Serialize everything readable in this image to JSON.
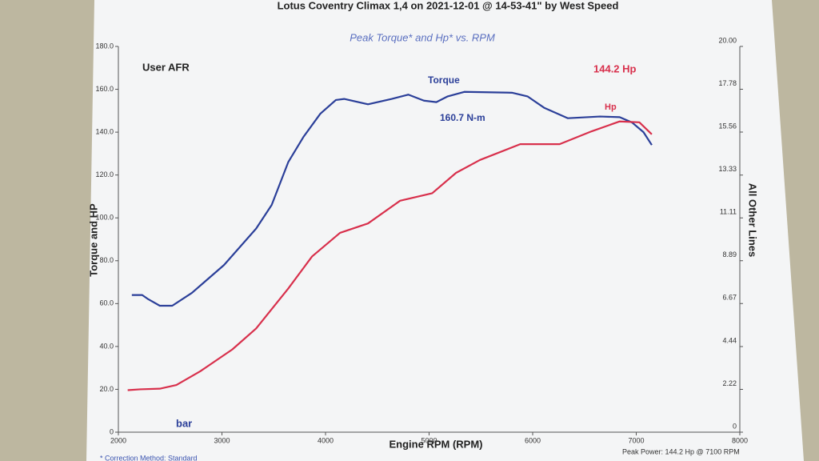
{
  "chart_data": {
    "type": "line",
    "header": "Lotus Coventry Climax 1,4 on 2021-12-01 @ 14-53-41\" by West Speed",
    "title": "Peak Torque* and Hp* vs. RPM",
    "x_label": "Engine RPM (RPM)",
    "y_label": "Torque and HP",
    "y2_label": "All Other Lines",
    "annotations": {
      "afr": "User AFR",
      "bar": "bar",
      "torque": "Torque",
      "torque_peak": "160.7 N-m",
      "hp_peak": "144.2 Hp",
      "hp": "Hp"
    },
    "footer_left": "* Correction Method: Standard",
    "footer_right": "Peak Power: 144.2 Hp @ 7100 RPM",
    "xlim": [
      2000,
      8000
    ],
    "xticks": [
      2000,
      3000,
      4000,
      5000,
      6000,
      7000,
      8000
    ],
    "ylim": [
      0,
      180
    ],
    "yticks": [
      0,
      {
        "value": 20,
        "label": "20.0"
      },
      {
        "value": 40,
        "label": "40.0"
      },
      {
        "value": 60,
        "label": "60.0"
      },
      {
        "value": 80,
        "label": "80.0"
      },
      {
        "value": 100,
        "label": "100.0"
      },
      {
        "value": 120,
        "label": "120.0"
      },
      {
        "value": 140,
        "label": "140.0"
      },
      {
        "value": 160,
        "label": "160.0"
      },
      {
        "value": 180,
        "label": "180.0"
      }
    ],
    "y2lim": [
      0,
      20
    ],
    "y2ticks": [
      0,
      2.22,
      4.44,
      6.67,
      8.89,
      11.11,
      13.33,
      15.56,
      17.78,
      {
        "value": 20,
        "label": "20.00"
      }
    ],
    "series": [
      {
        "name": "Torque",
        "color": "#2b3f99",
        "x": [
          2130,
          2230,
          2290,
          2400,
          2520,
          2710,
          3020,
          3330,
          3480,
          3640,
          3790,
          3950,
          4100,
          4180,
          4410,
          4640,
          4800,
          4950,
          5070,
          5180,
          5340,
          5800,
          5950,
          6110,
          6340,
          6650,
          6840,
          6960,
          7070,
          7150
        ],
        "values": [
          64,
          64,
          62,
          59,
          59,
          65,
          78,
          95,
          106,
          126,
          138,
          148.6,
          155,
          155.5,
          153,
          155.5,
          157.5,
          154.7,
          154,
          156.7,
          158.8,
          158.4,
          156.7,
          151.4,
          146.5,
          147.3,
          147,
          144.5,
          140,
          134
        ]
      },
      {
        "name": "Hp",
        "color": "#d8304c",
        "x": [
          2090,
          2210,
          2400,
          2560,
          2790,
          3100,
          3330,
          3640,
          3870,
          4140,
          4410,
          4720,
          5030,
          5260,
          5490,
          5880,
          6260,
          6570,
          6840,
          7030,
          7150
        ],
        "values": [
          19.6,
          20,
          20.3,
          22,
          28.4,
          38.6,
          48.4,
          67,
          82,
          93,
          97.4,
          108,
          111.5,
          121,
          127,
          134.4,
          134.4,
          140.4,
          145,
          144.6,
          139
        ]
      }
    ]
  }
}
